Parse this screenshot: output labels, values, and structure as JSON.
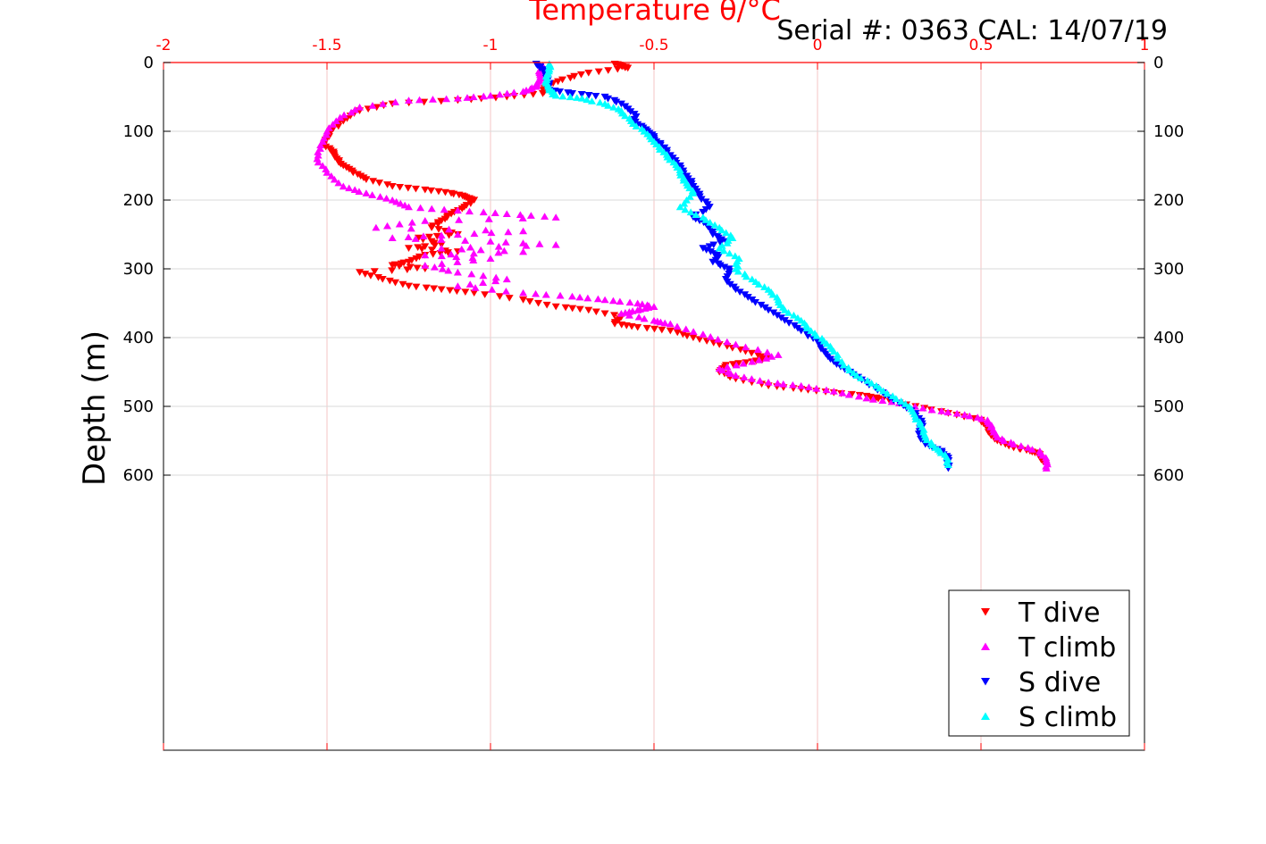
{
  "chart_data": {
    "type": "scatter",
    "title": "Temperature θ/°C",
    "annotation": "Serial #: 0363  CAL: 14/07/19",
    "ylabel": "Depth (m)",
    "xlabel": "",
    "x_axis_position": "top",
    "xlim": [
      -2,
      1
    ],
    "ylim": [
      0,
      1000
    ],
    "y_reversed": true,
    "xticks": [
      -2,
      -1.5,
      -1,
      -0.5,
      0,
      0.5,
      1
    ],
    "xtick_labels": [
      "-2",
      "-1.5",
      "-1",
      "-0.5",
      "0",
      "0.5",
      "1"
    ],
    "yticks": [
      0,
      100,
      200,
      300,
      400,
      500,
      600
    ],
    "ytick_labels": [
      "0",
      "100",
      "200",
      "300",
      "400",
      "500",
      "600"
    ],
    "grid": true,
    "legend_position": "bottom-right",
    "colors": {
      "axis_top": "#ff0000",
      "grid": "#f4c6c6",
      "t_dive": "#ff0000",
      "t_climb": "#ff00ff",
      "s_dive": "#0000ff",
      "s_climb": "#00ffff"
    },
    "series": [
      {
        "name": "T dive",
        "marker": "triangle-down",
        "color": "#ff0000",
        "points": [
          [
            -0.62,
            2
          ],
          [
            -0.6,
            5
          ],
          [
            -0.58,
            8
          ],
          [
            -0.7,
            15
          ],
          [
            -0.78,
            25
          ],
          [
            -0.83,
            35
          ],
          [
            -0.84,
            45
          ],
          [
            -0.95,
            50
          ],
          [
            -1.1,
            55
          ],
          [
            -1.3,
            60
          ],
          [
            -1.4,
            70
          ],
          [
            -1.45,
            85
          ],
          [
            -1.49,
            100
          ],
          [
            -1.5,
            110
          ],
          [
            -1.51,
            120
          ],
          [
            -1.48,
            130
          ],
          [
            -1.47,
            140
          ],
          [
            -1.45,
            150
          ],
          [
            -1.42,
            160
          ],
          [
            -1.38,
            170
          ],
          [
            -1.3,
            180
          ],
          [
            -1.2,
            185
          ],
          [
            -1.12,
            190
          ],
          [
            -1.08,
            195
          ],
          [
            -1.05,
            200
          ],
          [
            -1.08,
            210
          ],
          [
            -1.12,
            220
          ],
          [
            -1.15,
            230
          ],
          [
            -1.18,
            240
          ],
          [
            -1.1,
            250
          ],
          [
            -1.22,
            255
          ],
          [
            -1.15,
            265
          ],
          [
            -1.25,
            270
          ],
          [
            -1.1,
            275
          ],
          [
            -1.2,
            280
          ],
          [
            -1.25,
            290
          ],
          [
            -1.3,
            295
          ],
          [
            -1.2,
            300
          ],
          [
            -1.4,
            305
          ],
          [
            -1.33,
            315
          ],
          [
            -1.25,
            325
          ],
          [
            -1.15,
            330
          ],
          [
            -1.05,
            335
          ],
          [
            -0.9,
            345
          ],
          [
            -0.8,
            355
          ],
          [
            -0.7,
            360
          ],
          [
            -0.6,
            370
          ],
          [
            -0.62,
            380
          ],
          [
            -0.55,
            385
          ],
          [
            -0.45,
            390
          ],
          [
            -0.38,
            400
          ],
          [
            -0.3,
            410
          ],
          [
            -0.22,
            420
          ],
          [
            -0.15,
            430
          ],
          [
            -0.2,
            435
          ],
          [
            -0.28,
            440
          ],
          [
            -0.3,
            450
          ],
          [
            -0.25,
            460
          ],
          [
            -0.15,
            470
          ],
          [
            -0.05,
            475
          ],
          [
            0.05,
            480
          ],
          [
            0.15,
            485
          ],
          [
            0.2,
            490
          ],
          [
            0.3,
            500
          ],
          [
            0.4,
            510
          ],
          [
            0.5,
            520
          ],
          [
            0.52,
            530
          ],
          [
            0.53,
            540
          ],
          [
            0.55,
            550
          ],
          [
            0.6,
            560
          ],
          [
            0.65,
            565
          ],
          [
            0.68,
            570
          ],
          [
            0.69,
            580
          ]
        ]
      },
      {
        "name": "T climb",
        "marker": "triangle-up",
        "color": "#ff00ff",
        "points": [
          [
            -0.84,
            5
          ],
          [
            -0.85,
            15
          ],
          [
            -0.85,
            25
          ],
          [
            -0.86,
            35
          ],
          [
            -0.9,
            42
          ],
          [
            -1.0,
            48
          ],
          [
            -1.1,
            52
          ],
          [
            -1.25,
            55
          ],
          [
            -1.4,
            65
          ],
          [
            -1.46,
            80
          ],
          [
            -1.5,
            100
          ],
          [
            -1.52,
            120
          ],
          [
            -1.53,
            140
          ],
          [
            -1.5,
            160
          ],
          [
            -1.45,
            180
          ],
          [
            -1.38,
            190
          ],
          [
            -1.3,
            200
          ],
          [
            -1.25,
            210
          ],
          [
            -1.1,
            215
          ],
          [
            -0.95,
            220
          ],
          [
            -0.8,
            225
          ],
          [
            -1.2,
            230
          ],
          [
            -1.35,
            240
          ],
          [
            -0.9,
            245
          ],
          [
            -1.1,
            250
          ],
          [
            -1.3,
            255
          ],
          [
            -1.0,
            260
          ],
          [
            -0.8,
            265
          ],
          [
            -1.15,
            270
          ],
          [
            -0.9,
            275
          ],
          [
            -1.2,
            280
          ],
          [
            -1.0,
            285
          ],
          [
            -1.2,
            295
          ],
          [
            -1.1,
            305
          ],
          [
            -0.95,
            315
          ],
          [
            -1.1,
            325
          ],
          [
            -0.9,
            335
          ],
          [
            -0.75,
            340
          ],
          [
            -0.65,
            345
          ],
          [
            -0.55,
            350
          ],
          [
            -0.5,
            355
          ],
          [
            -0.55,
            360
          ],
          [
            -0.6,
            365
          ],
          [
            -0.5,
            375
          ],
          [
            -0.45,
            380
          ],
          [
            -0.35,
            395
          ],
          [
            -0.25,
            410
          ],
          [
            -0.12,
            425
          ],
          [
            -0.2,
            435
          ],
          [
            -0.3,
            445
          ],
          [
            -0.25,
            455
          ],
          [
            -0.15,
            465
          ],
          [
            -0.05,
            470
          ],
          [
            0.05,
            478
          ],
          [
            0.15,
            488
          ],
          [
            0.25,
            495
          ],
          [
            0.35,
            505
          ],
          [
            0.45,
            512
          ],
          [
            0.52,
            520
          ],
          [
            0.53,
            530
          ],
          [
            0.55,
            545
          ],
          [
            0.6,
            555
          ],
          [
            0.68,
            565
          ],
          [
            0.7,
            578
          ],
          [
            0.7,
            590
          ]
        ]
      },
      {
        "name": "S dive",
        "marker": "triangle-down",
        "color": "#0000ff",
        "points": [
          [
            -0.86,
            2
          ],
          [
            -0.84,
            10
          ],
          [
            -0.83,
            20
          ],
          [
            -0.82,
            30
          ],
          [
            -0.82,
            40
          ],
          [
            -0.75,
            45
          ],
          [
            -0.65,
            50
          ],
          [
            -0.6,
            60
          ],
          [
            -0.56,
            75
          ],
          [
            -0.55,
            90
          ],
          [
            -0.52,
            100
          ],
          [
            -0.5,
            110
          ],
          [
            -0.48,
            120
          ],
          [
            -0.45,
            135
          ],
          [
            -0.42,
            150
          ],
          [
            -0.4,
            165
          ],
          [
            -0.38,
            180
          ],
          [
            -0.36,
            195
          ],
          [
            -0.33,
            210
          ],
          [
            -0.38,
            225
          ],
          [
            -0.34,
            235
          ],
          [
            -0.32,
            250
          ],
          [
            -0.28,
            260
          ],
          [
            -0.35,
            270
          ],
          [
            -0.3,
            280
          ],
          [
            -0.32,
            290
          ],
          [
            -0.27,
            300
          ],
          [
            -0.28,
            315
          ],
          [
            -0.25,
            330
          ],
          [
            -0.2,
            345
          ],
          [
            -0.15,
            360
          ],
          [
            -0.1,
            375
          ],
          [
            -0.05,
            390
          ],
          [
            0.0,
            405
          ],
          [
            0.02,
            420
          ],
          [
            0.05,
            435
          ],
          [
            0.1,
            450
          ],
          [
            0.15,
            465
          ],
          [
            0.2,
            480
          ],
          [
            0.25,
            495
          ],
          [
            0.3,
            510
          ],
          [
            0.32,
            525
          ],
          [
            0.31,
            540
          ],
          [
            0.33,
            555
          ],
          [
            0.38,
            565
          ],
          [
            0.4,
            575
          ],
          [
            0.4,
            590
          ]
        ]
      },
      {
        "name": "S climb",
        "marker": "triangle-up",
        "color": "#00ffff",
        "points": [
          [
            -0.82,
            2
          ],
          [
            -0.82,
            10
          ],
          [
            -0.83,
            20
          ],
          [
            -0.83,
            30
          ],
          [
            -0.82,
            40
          ],
          [
            -0.8,
            48
          ],
          [
            -0.72,
            52
          ],
          [
            -0.65,
            60
          ],
          [
            -0.6,
            70
          ],
          [
            -0.57,
            85
          ],
          [
            -0.53,
            100
          ],
          [
            -0.5,
            115
          ],
          [
            -0.47,
            130
          ],
          [
            -0.44,
            145
          ],
          [
            -0.42,
            160
          ],
          [
            -0.4,
            175
          ],
          [
            -0.38,
            190
          ],
          [
            -0.42,
            210
          ],
          [
            -0.35,
            225
          ],
          [
            -0.3,
            240
          ],
          [
            -0.26,
            255
          ],
          [
            -0.3,
            270
          ],
          [
            -0.24,
            285
          ],
          [
            -0.25,
            300
          ],
          [
            -0.2,
            315
          ],
          [
            -0.15,
            330
          ],
          [
            -0.12,
            345
          ],
          [
            -0.1,
            360
          ],
          [
            -0.05,
            375
          ],
          [
            -0.02,
            390
          ],
          [
            0.02,
            405
          ],
          [
            0.05,
            420
          ],
          [
            0.08,
            440
          ],
          [
            0.12,
            455
          ],
          [
            0.18,
            470
          ],
          [
            0.23,
            485
          ],
          [
            0.28,
            500
          ],
          [
            0.3,
            515
          ],
          [
            0.32,
            530
          ],
          [
            0.33,
            545
          ],
          [
            0.36,
            560
          ],
          [
            0.39,
            570
          ],
          [
            0.4,
            585
          ]
        ]
      }
    ]
  }
}
